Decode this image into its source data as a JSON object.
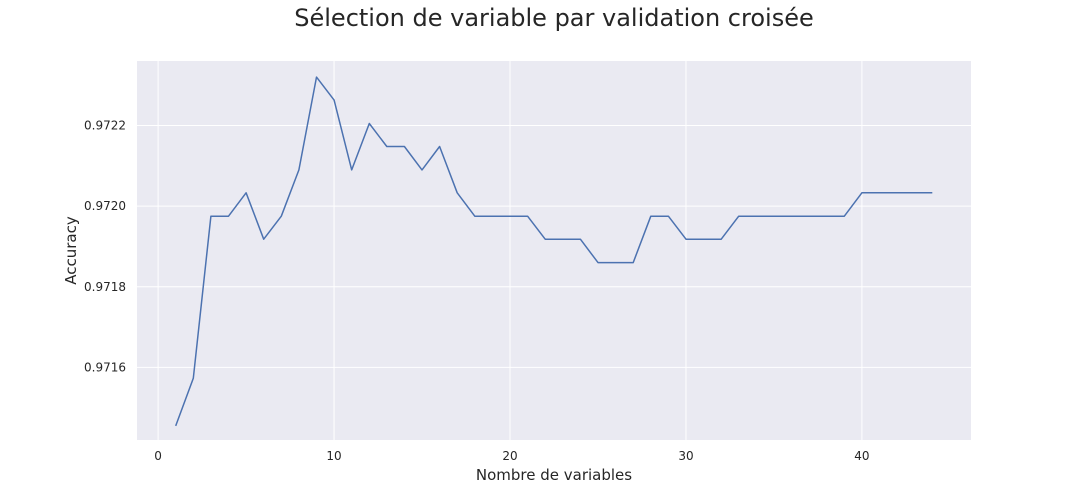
{
  "chart_data": {
    "type": "line",
    "title": "Sélection de variable par validation croisée",
    "xlabel": "Nombre de variables",
    "ylabel": "Accuracy",
    "xlim": [
      -1.2,
      46.2
    ],
    "ylim": [
      0.97142,
      0.97236
    ],
    "xticks": [
      0,
      10,
      20,
      30,
      40
    ],
    "xtick_labels": [
      "0",
      "10",
      "20",
      "30",
      "40"
    ],
    "yticks": [
      0.9716,
      0.9718,
      0.972,
      0.9722
    ],
    "ytick_labels": [
      "0.9716",
      "0.9718",
      "0.9720",
      "0.9722"
    ],
    "grid": true,
    "background": "#eaeaf2",
    "grid_color": "#ffffff",
    "series": [
      {
        "color": "#4c72b0",
        "x": [
          1,
          2,
          3,
          4,
          5,
          6,
          7,
          8,
          9,
          10,
          11,
          12,
          13,
          14,
          15,
          16,
          17,
          18,
          19,
          20,
          21,
          22,
          23,
          24,
          25,
          26,
          27,
          28,
          29,
          30,
          31,
          32,
          33,
          34,
          35,
          36,
          37,
          38,
          39,
          40,
          41,
          42,
          43,
          44
        ],
        "y": [
          0.971455,
          0.971573,
          0.971975,
          0.971975,
          0.972033,
          0.971918,
          0.971975,
          0.97209,
          0.97232,
          0.972263,
          0.97209,
          0.972205,
          0.972148,
          0.972148,
          0.97209,
          0.972148,
          0.972033,
          0.971975,
          0.971975,
          0.971975,
          0.971975,
          0.971918,
          0.971918,
          0.971918,
          0.97186,
          0.97186,
          0.97186,
          0.971975,
          0.971975,
          0.971918,
          0.971918,
          0.971918,
          0.971975,
          0.971975,
          0.971975,
          0.971975,
          0.971975,
          0.971975,
          0.971975,
          0.972033,
          0.972033,
          0.972033,
          0.972033,
          0.972033
        ]
      }
    ]
  }
}
